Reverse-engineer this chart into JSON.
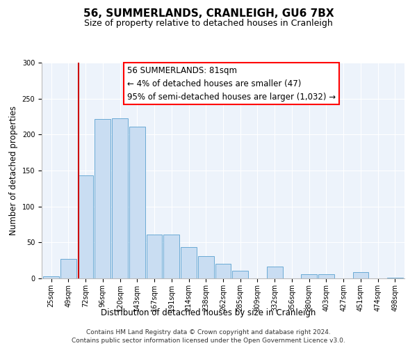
{
  "title": "56, SUMMERLANDS, CRANLEIGH, GU6 7BX",
  "subtitle": "Size of property relative to detached houses in Cranleigh",
  "xlabel": "Distribution of detached houses by size in Cranleigh",
  "ylabel": "Number of detached properties",
  "categories": [
    "25sqm",
    "49sqm",
    "72sqm",
    "96sqm",
    "120sqm",
    "143sqm",
    "167sqm",
    "191sqm",
    "214sqm",
    "238sqm",
    "262sqm",
    "285sqm",
    "309sqm",
    "332sqm",
    "356sqm",
    "380sqm",
    "403sqm",
    "427sqm",
    "451sqm",
    "474sqm",
    "498sqm"
  ],
  "values": [
    3,
    27,
    143,
    222,
    223,
    211,
    61,
    61,
    44,
    31,
    20,
    11,
    0,
    16,
    0,
    6,
    6,
    0,
    9,
    0,
    1
  ],
  "bar_color": "#c9ddf2",
  "bar_edge_color": "#6aaad4",
  "vline_color": "#cc0000",
  "vline_pos": 1.575,
  "ylim": [
    0,
    300
  ],
  "yticks": [
    0,
    50,
    100,
    150,
    200,
    250,
    300
  ],
  "annotation_title": "56 SUMMERLANDS: 81sqm",
  "annotation_line1": "← 4% of detached houses are smaller (47)",
  "annotation_line2": "95% of semi-detached houses are larger (1,032) →",
  "footer_line1": "Contains HM Land Registry data © Crown copyright and database right 2024.",
  "footer_line2": "Contains public sector information licensed under the Open Government Licence v3.0.",
  "bg_color": "#edf3fb",
  "fig_bg_color": "#ffffff",
  "title_fontsize": 11,
  "subtitle_fontsize": 9,
  "axis_label_fontsize": 8.5,
  "tick_fontsize": 7,
  "annotation_fontsize": 8.5,
  "footer_fontsize": 6.5
}
